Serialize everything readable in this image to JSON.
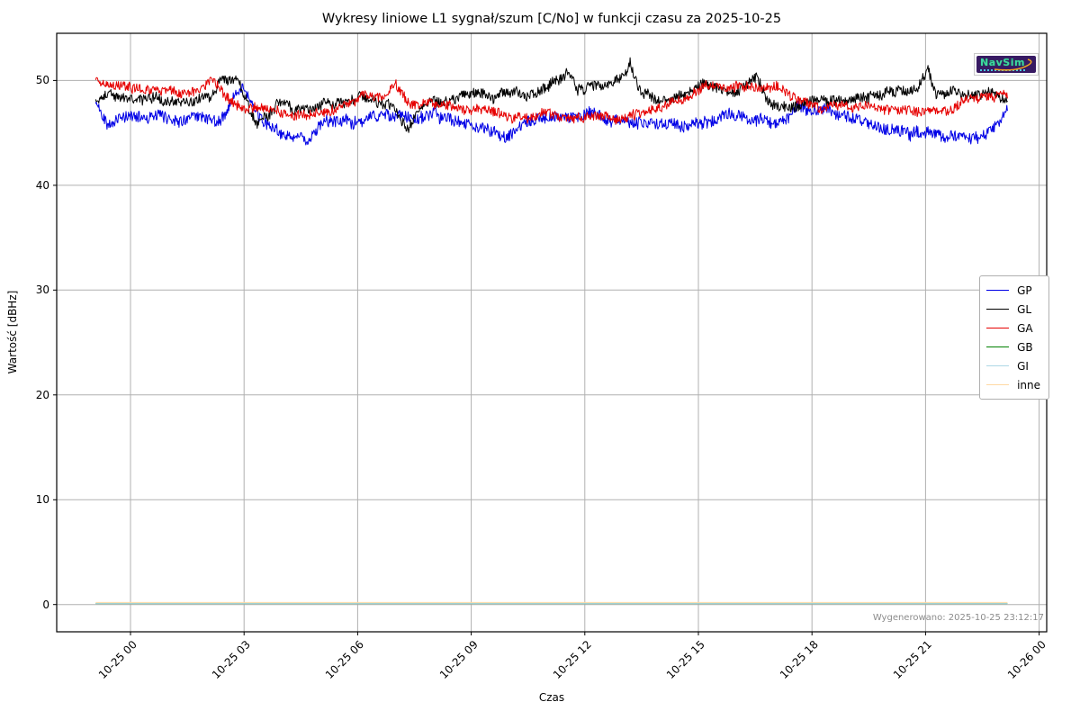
{
  "figure": {
    "background": "#ffffff",
    "grid_color": "#b0b0b0",
    "spine_color": "#000000",
    "note_color": "#8c8c8c"
  },
  "title": "Wykresy liniowe L1 sygnał/szum [C/No] w funkcji czasu za 2025-10-25",
  "generated_note": "Wygenerowano: 2025-10-25 23:12:17",
  "logo": {
    "text": "NavSim",
    "bg_color": "#371a63",
    "text_color": "#3fd6a0",
    "swoosh_color": "#eda421"
  },
  "chart_data": {
    "type": "line",
    "title": "Wykresy liniowe L1 sygnał/szum [C/No] w funkcji czasu za 2025-10-25",
    "xlabel": "Czas",
    "ylabel": "Wartość [dBHz]",
    "x_unit": "hours since 2025-10-25 00:00",
    "xlim": [
      -1.95,
      24.2
    ],
    "ylim": [
      -2.6,
      54.5
    ],
    "grid": true,
    "legend_position": "center right",
    "yticks": [
      0,
      10,
      20,
      30,
      40,
      50
    ],
    "xticks": {
      "values": [
        0,
        3,
        6,
        9,
        12,
        15,
        18,
        21,
        24
      ],
      "labels": [
        "10-25 00",
        "10-25 03",
        "10-25 06",
        "10-25 09",
        "10-25 12",
        "10-25 15",
        "10-25 18",
        "10-25 21",
        "10-26 00"
      ]
    },
    "series": [
      {
        "name": "GP",
        "color": "#0000e6",
        "noise": 0.55,
        "anchors": [
          [
            -0.92,
            47.8
          ],
          [
            -0.6,
            46.0
          ],
          [
            -0.3,
            46.3
          ],
          [
            0,
            46.6
          ],
          [
            0.5,
            46.6
          ],
          [
            1,
            46.4
          ],
          [
            1.5,
            46.3
          ],
          [
            2,
            46.5
          ],
          [
            2.4,
            46.2
          ],
          [
            2.9,
            49.4
          ],
          [
            3.1,
            48.6
          ],
          [
            3.4,
            46.3
          ],
          [
            3.8,
            45.2
          ],
          [
            4.3,
            44.3
          ],
          [
            4.7,
            44.4
          ],
          [
            5.2,
            46.2
          ],
          [
            5.6,
            46.4
          ],
          [
            6,
            45.9
          ],
          [
            6.5,
            46.8
          ],
          [
            7,
            46.5
          ],
          [
            7.5,
            46.3
          ],
          [
            8,
            46.6
          ],
          [
            8.5,
            46.3
          ],
          [
            9,
            45.9
          ],
          [
            9.5,
            45.1
          ],
          [
            9.9,
            44.8
          ],
          [
            10.3,
            45.6
          ],
          [
            10.8,
            46.4
          ],
          [
            11.3,
            46.6
          ],
          [
            11.8,
            46.5
          ],
          [
            12.1,
            47.2
          ],
          [
            12.5,
            46.4
          ],
          [
            13,
            46.0
          ],
          [
            13.5,
            45.8
          ],
          [
            14,
            46.2
          ],
          [
            14.5,
            45.7
          ],
          [
            15,
            46.0
          ],
          [
            15.5,
            46.2
          ],
          [
            16,
            46.9
          ],
          [
            16.5,
            46.2
          ],
          [
            17,
            45.7
          ],
          [
            17.6,
            47.3
          ],
          [
            18,
            47.4
          ],
          [
            18.5,
            47.2
          ],
          [
            19,
            46.6
          ],
          [
            19.5,
            45.8
          ],
          [
            20,
            45.3
          ],
          [
            20.5,
            45.2
          ],
          [
            21,
            44.9
          ],
          [
            21.5,
            44.7
          ],
          [
            22,
            44.5
          ],
          [
            22.4,
            44.4
          ],
          [
            22.8,
            45.3
          ],
          [
            23.0,
            46.3
          ],
          [
            23.17,
            47.4
          ]
        ]
      },
      {
        "name": "GL",
        "color": "#000000",
        "noise": 0.5,
        "anchors": [
          [
            -0.92,
            47.9
          ],
          [
            -0.6,
            48.7
          ],
          [
            -0.2,
            48.1
          ],
          [
            0.2,
            48.5
          ],
          [
            0.7,
            48.2
          ],
          [
            1.2,
            47.9
          ],
          [
            1.7,
            48.1
          ],
          [
            2.1,
            48.4
          ],
          [
            2.35,
            49.8
          ],
          [
            2.85,
            49.9
          ],
          [
            3.1,
            47.5
          ],
          [
            3.35,
            45.7
          ],
          [
            3.7,
            46.9
          ],
          [
            4,
            48.2
          ],
          [
            4.3,
            46.9
          ],
          [
            4.8,
            47.3
          ],
          [
            5.3,
            47.8
          ],
          [
            5.8,
            48.1
          ],
          [
            6.1,
            48.6
          ],
          [
            6.5,
            47.9
          ],
          [
            6.9,
            47.6
          ],
          [
            7.3,
            45.2
          ],
          [
            7.7,
            47.9
          ],
          [
            8.2,
            48.1
          ],
          [
            8.7,
            48.4
          ],
          [
            9.2,
            48.8
          ],
          [
            9.6,
            48.3
          ],
          [
            10,
            49.0
          ],
          [
            10.5,
            48.4
          ],
          [
            11,
            49.2
          ],
          [
            11.55,
            50.8
          ],
          [
            11.8,
            49.1
          ],
          [
            12.2,
            49.4
          ],
          [
            12.6,
            49.7
          ],
          [
            13.0,
            50.2
          ],
          [
            13.2,
            51.5
          ],
          [
            13.45,
            49.0
          ],
          [
            13.8,
            48.3
          ],
          [
            14.2,
            48.2
          ],
          [
            14.6,
            48.6
          ],
          [
            15,
            49.2
          ],
          [
            15.5,
            49.3
          ],
          [
            16,
            48.9
          ],
          [
            16.55,
            50.2
          ],
          [
            16.9,
            47.8
          ],
          [
            17.3,
            47.6
          ],
          [
            17.8,
            47.8
          ],
          [
            18.3,
            48.0
          ],
          [
            18.8,
            48.1
          ],
          [
            19.3,
            48.2
          ],
          [
            19.8,
            48.7
          ],
          [
            20.3,
            48.9
          ],
          [
            20.8,
            49.0
          ],
          [
            21.05,
            50.9
          ],
          [
            21.3,
            48.5
          ],
          [
            21.7,
            48.9
          ],
          [
            22.1,
            48.4
          ],
          [
            22.5,
            48.6
          ],
          [
            22.9,
            48.8
          ],
          [
            23.17,
            47.9
          ]
        ]
      },
      {
        "name": "GA",
        "color": "#e60000",
        "noise": 0.45,
        "anchors": [
          [
            -0.92,
            50.2
          ],
          [
            -0.6,
            49.4
          ],
          [
            -0.2,
            49.6
          ],
          [
            0.3,
            49.3
          ],
          [
            0.8,
            49.1
          ],
          [
            1.3,
            48.8
          ],
          [
            1.8,
            49.1
          ],
          [
            2.15,
            50.0
          ],
          [
            2.5,
            48.5
          ],
          [
            2.9,
            47.3
          ],
          [
            3.3,
            47.4
          ],
          [
            3.7,
            47.2
          ],
          [
            4.1,
            46.9
          ],
          [
            4.5,
            46.6
          ],
          [
            4.9,
            46.8
          ],
          [
            5.4,
            47.2
          ],
          [
            5.9,
            48.0
          ],
          [
            6.2,
            48.6
          ],
          [
            6.6,
            48.2
          ],
          [
            7.0,
            49.8
          ],
          [
            7.35,
            47.9
          ],
          [
            7.8,
            48.1
          ],
          [
            8.3,
            47.5
          ],
          [
            8.8,
            47.3
          ],
          [
            9.3,
            47.4
          ],
          [
            9.7,
            47.0
          ],
          [
            10.1,
            46.5
          ],
          [
            10.5,
            46.3
          ],
          [
            11,
            46.9
          ],
          [
            11.5,
            46.2
          ],
          [
            12,
            46.5
          ],
          [
            12.5,
            46.6
          ],
          [
            13,
            46.4
          ],
          [
            13.5,
            47.0
          ],
          [
            14,
            47.6
          ],
          [
            14.6,
            48.1
          ],
          [
            15.2,
            49.6
          ],
          [
            15.7,
            49.4
          ],
          [
            16.2,
            49.5
          ],
          [
            16.7,
            49.3
          ],
          [
            17.2,
            49.4
          ],
          [
            17.7,
            48.1
          ],
          [
            18.2,
            47.4
          ],
          [
            18.7,
            47.6
          ],
          [
            19.2,
            47.2
          ],
          [
            19.7,
            47.4
          ],
          [
            20.2,
            47.3
          ],
          [
            20.7,
            47.1
          ],
          [
            21.2,
            46.9
          ],
          [
            21.7,
            47.4
          ],
          [
            22.2,
            48.4
          ],
          [
            22.7,
            48.6
          ],
          [
            23.17,
            48.5
          ]
        ]
      },
      {
        "name": "GB",
        "color": "#008000",
        "noise": 0,
        "anchors": [
          [
            -0.92,
            0.1
          ],
          [
            23.17,
            0.1
          ]
        ]
      },
      {
        "name": "GI",
        "color": "#add8e6",
        "noise": 0,
        "anchors": [
          [
            -0.92,
            0.1
          ],
          [
            23.17,
            0.1
          ]
        ]
      },
      {
        "name": "inne",
        "color": "#ffd9a3",
        "noise": 0,
        "anchors": [
          [
            -0.92,
            0.2
          ],
          [
            23.17,
            0.2
          ]
        ]
      }
    ]
  }
}
